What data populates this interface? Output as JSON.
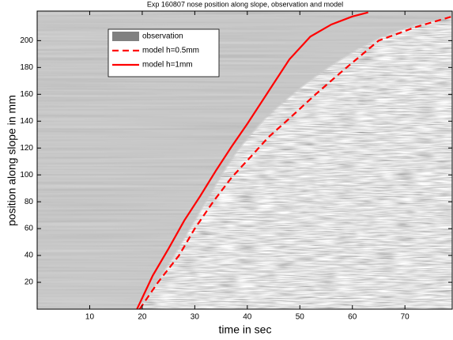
{
  "chart_data": {
    "type": "line",
    "title": "Exp 160807 nose position along slope, observation and model",
    "x_label": "time in sec",
    "y_label": "position along slope in mm",
    "xlim": [
      0,
      79
    ],
    "ylim": [
      0,
      222
    ],
    "xticks": [
      10,
      20,
      30,
      40,
      50,
      60,
      70
    ],
    "yticks": [
      20,
      40,
      60,
      80,
      100,
      120,
      140,
      160,
      180,
      200
    ],
    "legend": "upper left",
    "series": [
      {
        "name": "observation",
        "color": "#808080",
        "style": "image",
        "x": [
          19,
          23,
          26,
          29,
          32,
          35,
          38,
          41,
          44,
          47,
          51,
          56,
          61,
          66,
          72,
          79
        ],
        "values": [
          0,
          22,
          40,
          60,
          80,
          100,
          118,
          132,
          145,
          155,
          168,
          182,
          194,
          204,
          212,
          218
        ]
      },
      {
        "name": "model h=0.5mm",
        "color": "#ff0000",
        "style": "dashed",
        "x": [
          19.5,
          23,
          27,
          30,
          33.5,
          37,
          41,
          44,
          48,
          53,
          58,
          65,
          72,
          79
        ],
        "values": [
          0,
          20,
          40,
          60,
          80,
          98,
          115,
          128,
          142,
          160,
          177,
          200,
          210,
          218
        ]
      },
      {
        "name": "model h=1mm",
        "color": "#ff0000",
        "style": "solid",
        "x": [
          19,
          22,
          25,
          28,
          31,
          34,
          37,
          40,
          44,
          48,
          52,
          56,
          60,
          63
        ],
        "values": [
          0,
          25,
          45,
          66,
          84,
          103,
          121,
          138,
          162,
          186,
          203,
          212,
          218,
          221
        ]
      }
    ]
  }
}
